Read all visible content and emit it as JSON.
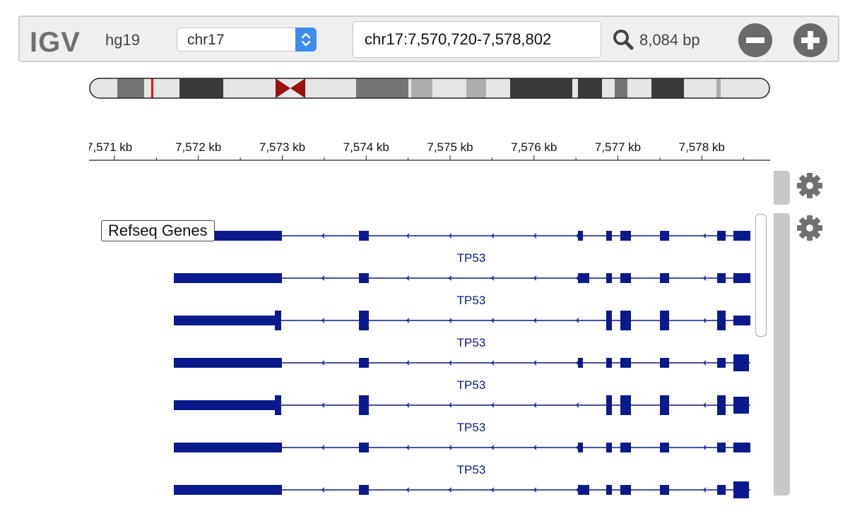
{
  "navbar": {
    "logo": "IGV",
    "genome": "hg19",
    "chromosome": "chr17",
    "locus": "chr17:7,570,720-7,578,802",
    "window_size": "8,084 bp",
    "search_icon": "search-icon",
    "zoom_out_icon": "zoom-out-icon",
    "zoom_in_icon": "zoom-in-icon"
  },
  "ideogram": {
    "centromere_color": "#9b1010",
    "current_region_color": "#ff0000"
  },
  "ruler": {
    "ticks": [
      "7,571 kb",
      "7,572 kb",
      "7,573 kb",
      "7,574 kb",
      "7,575 kb",
      "7,576 kb",
      "7,577 kb",
      "7,578 kb",
      "7,"
    ]
  },
  "tracks": [
    {
      "name": "Refseq Genes",
      "gear_icon": "gear-icon",
      "feature_color": "#0a1a8c",
      "transcripts": [
        {
          "name": "TP53"
        },
        {
          "name": "TP53"
        },
        {
          "name": "TP53"
        },
        {
          "name": "TP53"
        },
        {
          "name": "TP53"
        },
        {
          "name": "TP53"
        },
        {
          "name": "TP53"
        }
      ]
    }
  ],
  "colors": {
    "accent": "#3b8cf0",
    "icon_gray": "#6a6a6a"
  }
}
